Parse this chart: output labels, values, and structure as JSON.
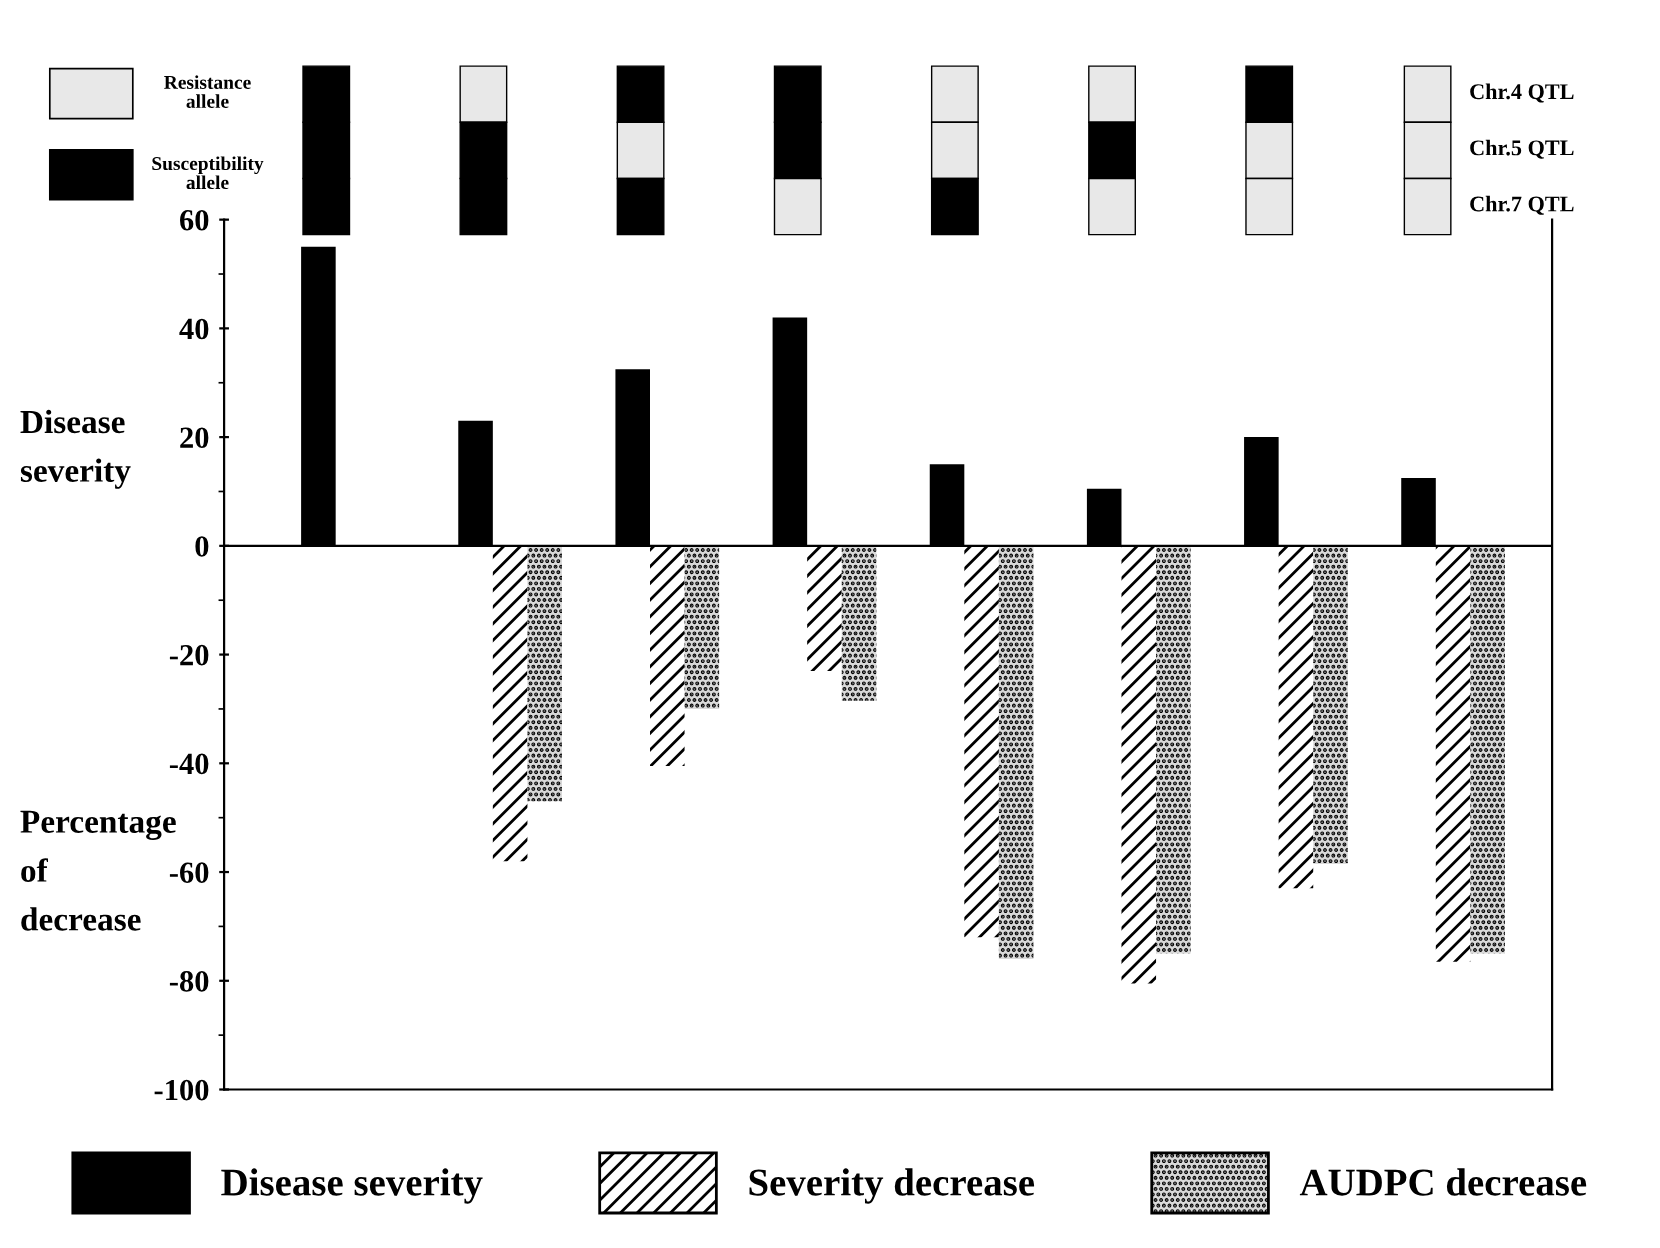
{
  "chart_data": {
    "type": "bar",
    "categories": [
      null,
      null,
      null,
      null,
      null,
      null,
      null,
      null
    ],
    "series": [
      {
        "name": "Disease severity",
        "color": "#000000",
        "values": [
          55,
          23,
          32.5,
          42,
          15,
          10.5,
          20,
          12.5
        ]
      },
      {
        "name": "Severity decrease",
        "color": "#ffffff",
        "values": [
          null,
          -58,
          -40.5,
          -23,
          -72,
          -80.5,
          -63,
          -76.5
        ]
      },
      {
        "name": "AUDPC decrease",
        "color": "#d9d9d9",
        "values": [
          null,
          -47,
          -30,
          -28.5,
          -76,
          -75,
          -58.5,
          -75
        ]
      }
    ],
    "ylabel": "Disease severity",
    "annotations": [
      "Percentage of decrease",
      "Resistance allele",
      "Susceptibility allele",
      "Chr.4 QTL",
      "Chr.5 QTL",
      "Chr.7 QTL"
    ],
    "ylim": [
      -100,
      60
    ],
    "yticks": [
      -100,
      -80,
      -60,
      -40,
      -20,
      0,
      20,
      40,
      60
    ],
    "ref_lines": [
      {
        "axis": "y",
        "value": 0,
        "color": "#000000"
      }
    ],
    "grid": false,
    "legend": "bottom"
  }
}
